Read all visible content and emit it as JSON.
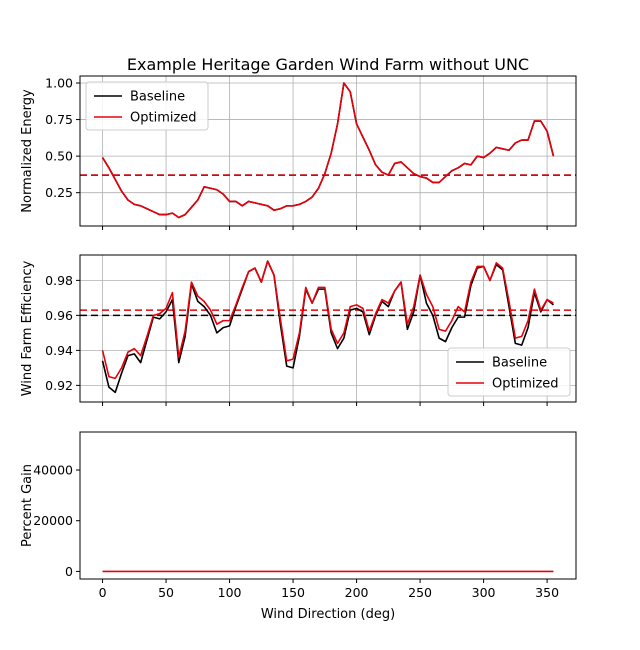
{
  "chart_data": [
    {
      "type": "line",
      "title": "Example Heritage Garden Wind Farm without UNC",
      "xlabel": "",
      "ylabel": "Normalized Energy",
      "xlim": [
        -17.75,
        372.75
      ],
      "ylim": [
        0.022,
        1.048
      ],
      "xticks": [
        0,
        50,
        100,
        150,
        200,
        250,
        300,
        350
      ],
      "yticks": [
        0.25,
        0.5,
        0.75,
        1.0
      ],
      "ytick_labels": [
        "0.25",
        "0.50",
        "0.75",
        "1.00"
      ],
      "grid": true,
      "legend": {
        "placement": "top-left",
        "entries": [
          "Baseline",
          "Optimized"
        ]
      },
      "x": [
        0,
        5,
        10,
        15,
        20,
        25,
        30,
        35,
        40,
        45,
        50,
        55,
        60,
        65,
        70,
        75,
        80,
        85,
        90,
        95,
        100,
        105,
        110,
        115,
        120,
        125,
        130,
        135,
        140,
        145,
        150,
        155,
        160,
        165,
        170,
        175,
        180,
        185,
        190,
        195,
        200,
        205,
        210,
        215,
        220,
        225,
        230,
        235,
        240,
        245,
        250,
        255,
        260,
        265,
        270,
        275,
        280,
        285,
        290,
        295,
        300,
        305,
        310,
        315,
        320,
        325,
        330,
        335,
        340,
        345,
        350,
        355
      ],
      "series": [
        {
          "name": "Baseline",
          "color": "#000000",
          "values": [
            0.49,
            0.42,
            0.34,
            0.26,
            0.2,
            0.17,
            0.16,
            0.14,
            0.12,
            0.1,
            0.1,
            0.11,
            0.08,
            0.1,
            0.15,
            0.2,
            0.29,
            0.28,
            0.27,
            0.24,
            0.19,
            0.19,
            0.16,
            0.19,
            0.18,
            0.17,
            0.16,
            0.13,
            0.14,
            0.16,
            0.16,
            0.17,
            0.19,
            0.22,
            0.28,
            0.38,
            0.52,
            0.72,
            1.0,
            0.94,
            0.72,
            0.63,
            0.54,
            0.44,
            0.39,
            0.37,
            0.45,
            0.46,
            0.42,
            0.38,
            0.36,
            0.35,
            0.32,
            0.32,
            0.36,
            0.4,
            0.42,
            0.45,
            0.44,
            0.5,
            0.49,
            0.52,
            0.56,
            0.55,
            0.54,
            0.59,
            0.61,
            0.61,
            0.74,
            0.74,
            0.67,
            0.5
          ]
        },
        {
          "name": "Optimized",
          "color": "#e8000b",
          "values": [
            0.49,
            0.42,
            0.34,
            0.26,
            0.2,
            0.17,
            0.16,
            0.14,
            0.12,
            0.1,
            0.1,
            0.11,
            0.08,
            0.1,
            0.15,
            0.2,
            0.29,
            0.28,
            0.27,
            0.24,
            0.19,
            0.19,
            0.16,
            0.19,
            0.18,
            0.17,
            0.16,
            0.13,
            0.14,
            0.16,
            0.16,
            0.17,
            0.19,
            0.22,
            0.28,
            0.38,
            0.52,
            0.72,
            1.0,
            0.94,
            0.72,
            0.63,
            0.54,
            0.44,
            0.39,
            0.37,
            0.45,
            0.46,
            0.42,
            0.38,
            0.36,
            0.35,
            0.32,
            0.32,
            0.36,
            0.4,
            0.42,
            0.45,
            0.44,
            0.5,
            0.49,
            0.52,
            0.56,
            0.55,
            0.54,
            0.59,
            0.61,
            0.61,
            0.74,
            0.74,
            0.67,
            0.5
          ]
        }
      ],
      "hlines": [
        {
          "series": "Baseline",
          "value": 0.37,
          "color": "#000000",
          "style": "dashed"
        },
        {
          "series": "Optimized",
          "value": 0.37,
          "color": "#e8000b",
          "style": "dashed"
        }
      ]
    },
    {
      "type": "line",
      "title": "",
      "xlabel": "",
      "ylabel": "Wind Farm Efficiency",
      "xlim": [
        -17.75,
        372.75
      ],
      "ylim": [
        0.9105,
        0.9945
      ],
      "xticks": [
        0,
        50,
        100,
        150,
        200,
        250,
        300,
        350
      ],
      "yticks": [
        0.92,
        0.94,
        0.96,
        0.98
      ],
      "ytick_labels": [
        "0.92",
        "0.94",
        "0.96",
        "0.98"
      ],
      "grid": true,
      "legend": {
        "placement": "bottom-right",
        "entries": [
          "Baseline",
          "Optimized"
        ]
      },
      "x": [
        0,
        5,
        10,
        15,
        20,
        25,
        30,
        35,
        40,
        45,
        50,
        55,
        60,
        65,
        70,
        75,
        80,
        85,
        90,
        95,
        100,
        105,
        110,
        115,
        120,
        125,
        130,
        135,
        140,
        145,
        150,
        155,
        160,
        165,
        170,
        175,
        180,
        185,
        190,
        195,
        200,
        205,
        210,
        215,
        220,
        225,
        230,
        235,
        240,
        245,
        250,
        255,
        260,
        265,
        270,
        275,
        280,
        285,
        290,
        295,
        300,
        305,
        310,
        315,
        320,
        325,
        330,
        335,
        340,
        345,
        350,
        355
      ],
      "series": [
        {
          "name": "Baseline",
          "color": "#000000",
          "values": [
            0.934,
            0.919,
            0.916,
            0.927,
            0.937,
            0.938,
            0.933,
            0.946,
            0.959,
            0.958,
            0.962,
            0.969,
            0.933,
            0.948,
            0.978,
            0.968,
            0.965,
            0.96,
            0.95,
            0.953,
            0.954,
            0.965,
            0.975,
            0.985,
            0.987,
            0.979,
            0.991,
            0.983,
            0.955,
            0.931,
            0.93,
            0.948,
            0.975,
            0.967,
            0.975,
            0.975,
            0.95,
            0.941,
            0.947,
            0.963,
            0.964,
            0.962,
            0.949,
            0.96,
            0.968,
            0.965,
            0.974,
            0.979,
            0.952,
            0.962,
            0.983,
            0.967,
            0.96,
            0.947,
            0.945,
            0.953,
            0.959,
            0.959,
            0.977,
            0.987,
            0.988,
            0.98,
            0.989,
            0.986,
            0.965,
            0.944,
            0.943,
            0.953,
            0.973,
            0.962,
            0.969,
            0.966
          ]
        },
        {
          "name": "Optimized",
          "color": "#e8000b",
          "values": [
            0.94,
            0.925,
            0.924,
            0.93,
            0.939,
            0.941,
            0.937,
            0.948,
            0.96,
            0.961,
            0.964,
            0.973,
            0.936,
            0.951,
            0.979,
            0.971,
            0.968,
            0.963,
            0.955,
            0.957,
            0.957,
            0.966,
            0.976,
            0.985,
            0.987,
            0.979,
            0.991,
            0.983,
            0.958,
            0.934,
            0.935,
            0.95,
            0.976,
            0.967,
            0.976,
            0.976,
            0.952,
            0.944,
            0.95,
            0.965,
            0.966,
            0.964,
            0.951,
            0.961,
            0.969,
            0.967,
            0.974,
            0.979,
            0.955,
            0.965,
            0.983,
            0.972,
            0.965,
            0.952,
            0.951,
            0.957,
            0.965,
            0.962,
            0.979,
            0.988,
            0.988,
            0.98,
            0.99,
            0.987,
            0.968,
            0.947,
            0.948,
            0.957,
            0.975,
            0.963,
            0.969,
            0.967
          ]
        }
      ],
      "hlines": [
        {
          "series": "Baseline",
          "value": 0.96,
          "color": "#000000",
          "style": "dashed"
        },
        {
          "series": "Optimized",
          "value": 0.963,
          "color": "#e8000b",
          "style": "dashed"
        }
      ]
    },
    {
      "type": "line",
      "title": "",
      "xlabel": "Wind Direction (deg)",
      "ylabel": "Percent Gain",
      "xlim": [
        -17.75,
        372.75
      ],
      "ylim": [
        -3000,
        55000
      ],
      "xticks": [
        0,
        50,
        100,
        150,
        200,
        250,
        300,
        350
      ],
      "yticks": [
        0,
        20000,
        40000
      ],
      "ytick_labels": [
        "0",
        "20000",
        "40000"
      ],
      "grid": false,
      "legend": null,
      "x": [
        0,
        355
      ],
      "series": [
        {
          "color": "#e8000b",
          "values": [
            0,
            0
          ]
        }
      ],
      "hlines": []
    }
  ]
}
